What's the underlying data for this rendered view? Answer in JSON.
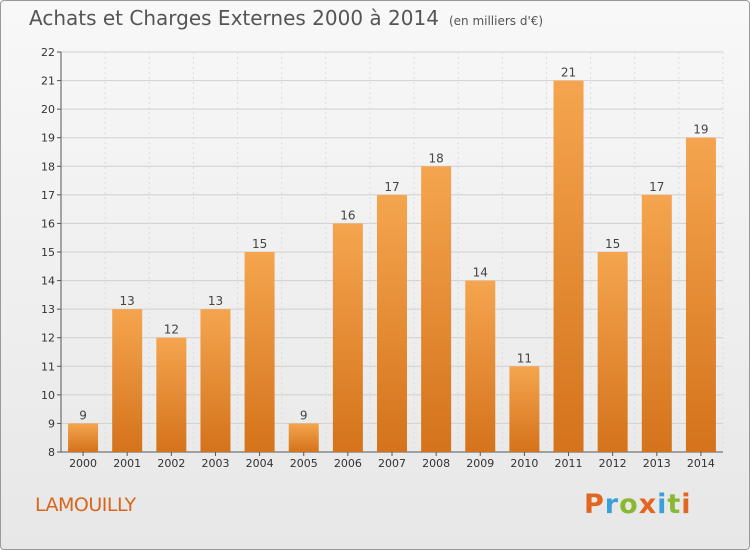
{
  "header": {
    "title": "Achats et Charges Externes 2000 à 2014",
    "subtitle": "(en milliers d'€)"
  },
  "footer": {
    "commune": "LAMOUILLY",
    "logo_text": "Proxiti",
    "logo_colors": [
      "#e2661f",
      "#3aa0d8",
      "#8ab832",
      "#e2661f",
      "#3aa0d8",
      "#8ab832",
      "#e2661f"
    ]
  },
  "chart_data": {
    "type": "bar",
    "title": "Achats et Charges Externes 2000 à 2014",
    "subtitle": "(en milliers d'€)",
    "categories": [
      "2000",
      "2001",
      "2002",
      "2003",
      "2004",
      "2005",
      "2006",
      "2007",
      "2008",
      "2009",
      "2010",
      "2011",
      "2012",
      "2013",
      "2014"
    ],
    "values": [
      9,
      13,
      12,
      13,
      15,
      9,
      16,
      17,
      18,
      14,
      11,
      21,
      15,
      17,
      19
    ],
    "ylim": [
      8,
      22
    ],
    "yticks": [
      8,
      9,
      10,
      11,
      12,
      13,
      14,
      15,
      16,
      17,
      18,
      19,
      20,
      21,
      22
    ],
    "grid": true,
    "bar_color_top": "#f5a54f",
    "bar_color_bottom": "#d4731b",
    "xlabel": "",
    "ylabel": ""
  }
}
